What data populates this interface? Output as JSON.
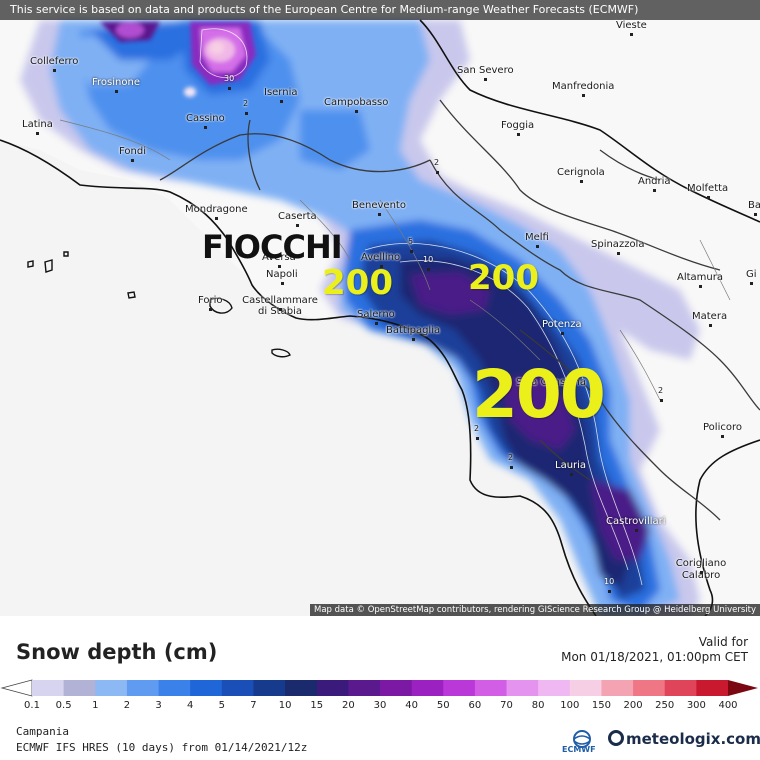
{
  "banner": "This service is based on data and products of the European Centre for Medium-range Weather Forecasts (ECMWF)",
  "attribution": "Map data © OpenStreetMap contributors, rendering GIScience Research Group @ Heidelberg University",
  "annotation_text": "FIOCCHI",
  "overlay_values": [
    "200",
    "200",
    "200"
  ],
  "cities": [
    {
      "name": "Colleferro"
    },
    {
      "name": "Frosinone"
    },
    {
      "name": "Latina"
    },
    {
      "name": "Cassino"
    },
    {
      "name": "Fondi"
    },
    {
      "name": "Isernia"
    },
    {
      "name": "Campobasso"
    },
    {
      "name": "San Severo"
    },
    {
      "name": "Manfredonia"
    },
    {
      "name": "Vieste"
    },
    {
      "name": "Foggia"
    },
    {
      "name": "Cerignola"
    },
    {
      "name": "Andria"
    },
    {
      "name": "Molfetta"
    },
    {
      "name": "Ba"
    },
    {
      "name": "Mondragone"
    },
    {
      "name": "Caserta"
    },
    {
      "name": "Benevento"
    },
    {
      "name": "Melfi"
    },
    {
      "name": "Spinazzola"
    },
    {
      "name": "Avellino"
    },
    {
      "name": "Aversa"
    },
    {
      "name": "Napoli"
    },
    {
      "name": "Altamura"
    },
    {
      "name": "Gi"
    },
    {
      "name": "Forio"
    },
    {
      "name": "Castellammare di Stabia"
    },
    {
      "name": "Salerno"
    },
    {
      "name": "Battipaglia"
    },
    {
      "name": "Potenza"
    },
    {
      "name": "Matera"
    },
    {
      "name": "Sala Consilina"
    },
    {
      "name": "Policoro"
    },
    {
      "name": "Lauria"
    },
    {
      "name": "Castrovillari"
    },
    {
      "name": "Corigliano Calabro"
    }
  ],
  "contour_labels": [
    "30",
    "2",
    "2",
    "5",
    "10",
    "2",
    "2",
    "10",
    "2"
  ],
  "legend": {
    "title": "Snow depth (cm)",
    "valid_for_label": "Valid for",
    "valid_time": "Mon 01/18/2021, 01:00pm CET",
    "ticks": [
      "0.1",
      "0.5",
      "1",
      "2",
      "3",
      "4",
      "5",
      "7",
      "10",
      "15",
      "20",
      "30",
      "40",
      "50",
      "60",
      "70",
      "80",
      "100",
      "150",
      "200",
      "250",
      "300",
      "400"
    ],
    "colors": [
      "#d6d4ee",
      "#b1b2d6",
      "#8cb8f4",
      "#5f9cf1",
      "#3b81ea",
      "#1f66d8",
      "#1a4fb8",
      "#163a8c",
      "#1a2a6c",
      "#3a1a7a",
      "#5b198e",
      "#7b18a4",
      "#9b22c0",
      "#bb38d8",
      "#d25ee6",
      "#e493ef",
      "#f0b8f2",
      "#f7cfe4",
      "#f4a3b3",
      "#ef7684",
      "#e0445a",
      "#c8192e",
      "#a20d1c",
      "#7a0712"
    ]
  },
  "region": "Campania",
  "model_info": "ECMWF IFS HRES (10 days) from 01/14/2021/12z",
  "logos": {
    "ecmwf": "ECMWF",
    "meteologix": "meteologix.com"
  }
}
